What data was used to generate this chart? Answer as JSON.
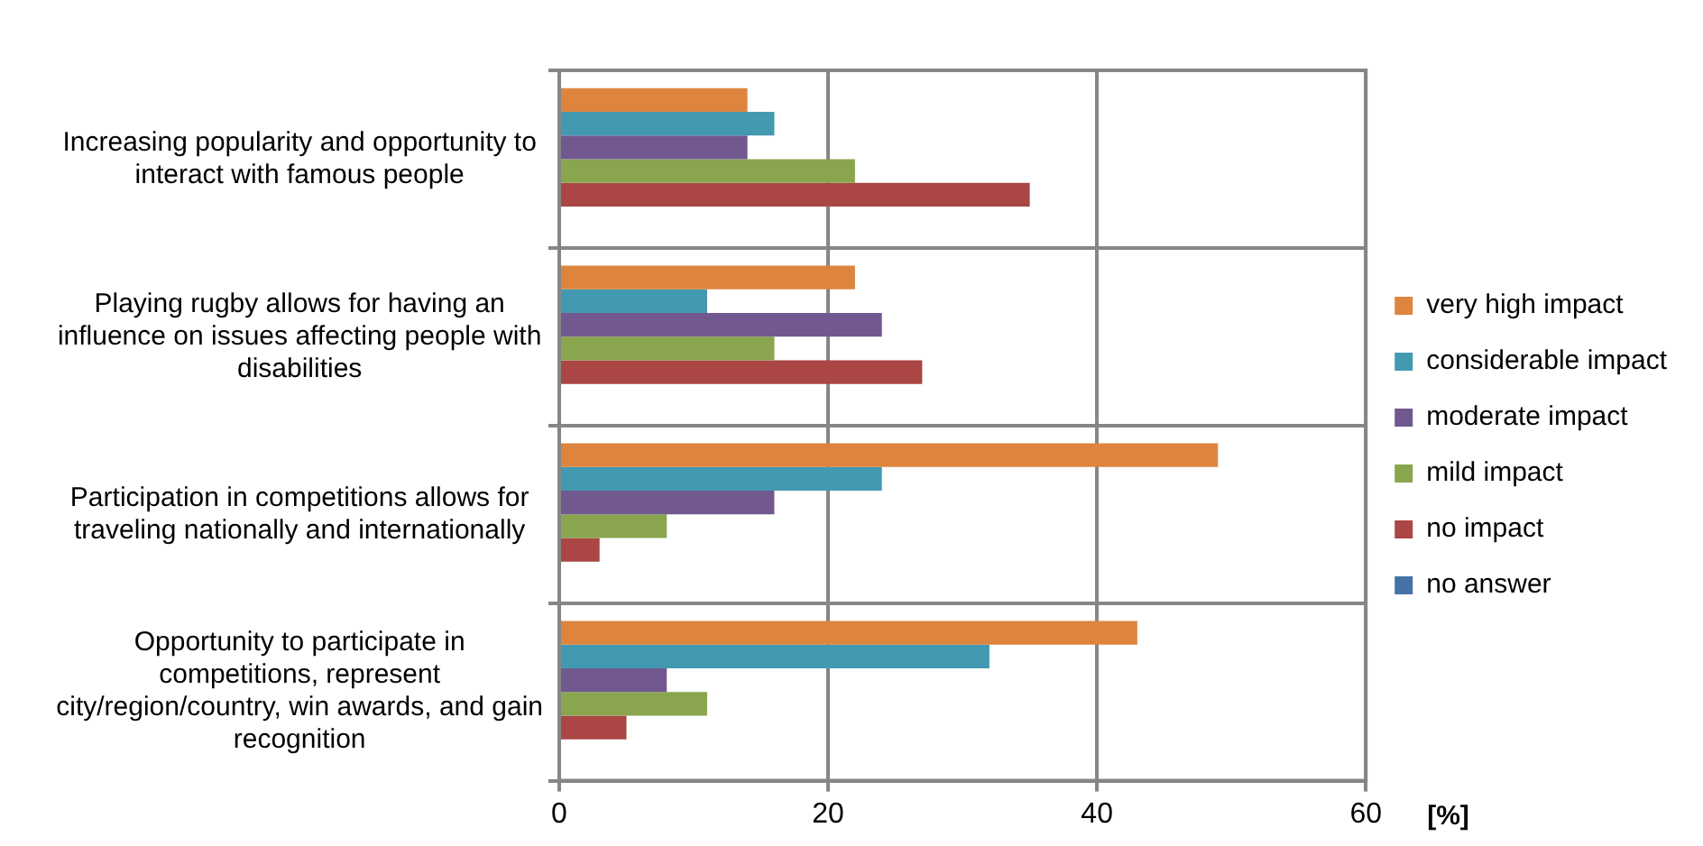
{
  "chart_data": {
    "type": "bar",
    "orientation": "horizontal",
    "xlabel": "[%]",
    "categories": [
      "Increasing popularity and opportunity to interact with famous people",
      "Playing rugby allows for having an influence on issues affecting people with disabilities",
      "Participation in competitions allows for traveling nationally and internationally",
      "Opportunity to participate in competitions, represent city/region/country, win awards, and gain recognition"
    ],
    "series": [
      {
        "name": "very high impact",
        "color": "#dd853f",
        "values": [
          14,
          22,
          49,
          43
        ]
      },
      {
        "name": "considerable impact",
        "color": "#4299b0",
        "values": [
          16,
          11,
          24,
          32
        ]
      },
      {
        "name": "moderate impact",
        "color": "#71588f",
        "values": [
          14,
          24,
          16,
          8
        ]
      },
      {
        "name": "mild impact",
        "color": "#89a54e",
        "values": [
          22,
          16,
          8,
          11
        ]
      },
      {
        "name": "no impact",
        "color": "#aa4644",
        "values": [
          35,
          27,
          3,
          5
        ]
      },
      {
        "name": "no answer",
        "color": "#4572a7",
        "values": [
          0,
          0,
          0,
          0
        ]
      }
    ],
    "xlim": [
      0,
      60
    ],
    "xticks": [
      0,
      20,
      40,
      60
    ],
    "grid": true,
    "legend": "right"
  }
}
